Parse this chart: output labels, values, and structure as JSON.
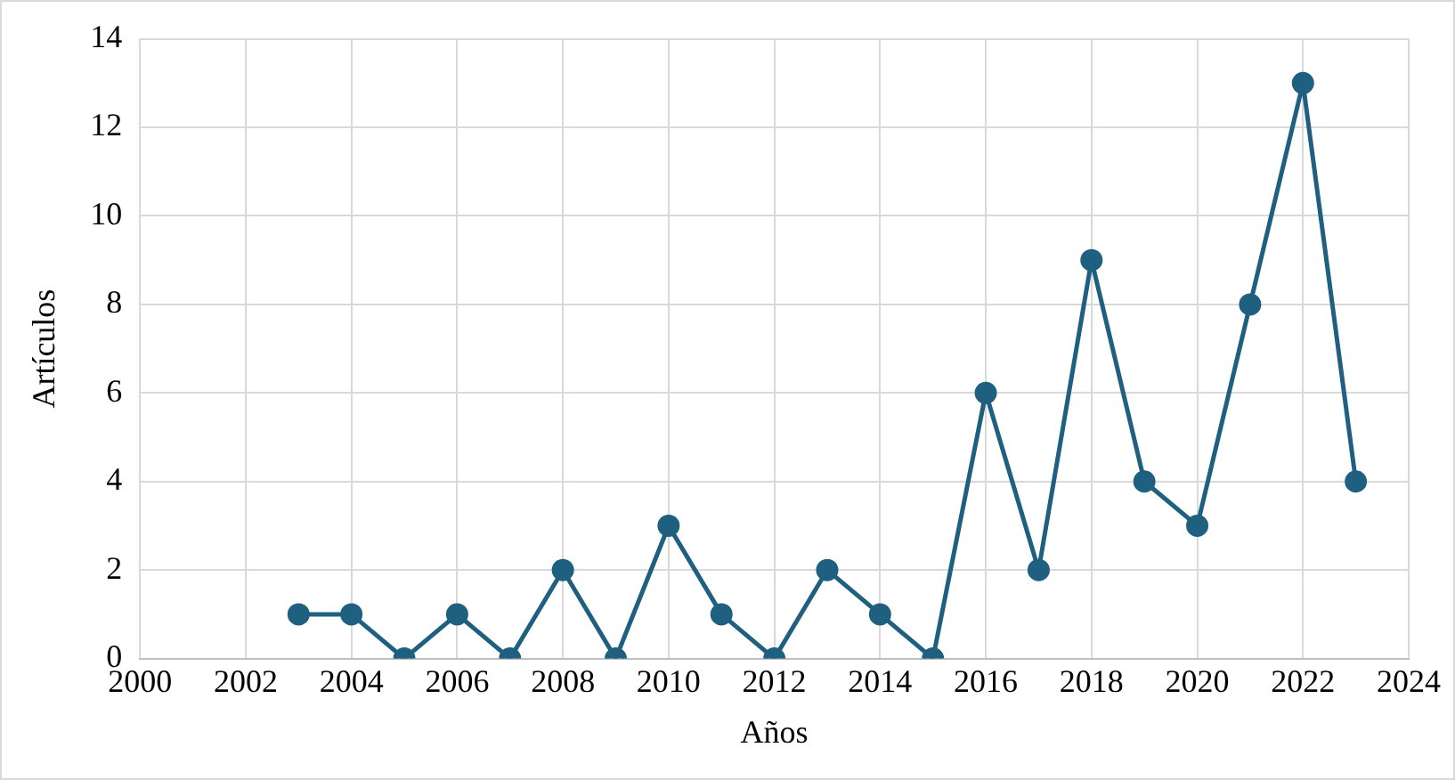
{
  "chart_data": {
    "type": "line",
    "xlabel": "Años",
    "ylabel": "Artículos",
    "x": [
      2003,
      2004,
      2005,
      2006,
      2007,
      2008,
      2009,
      2010,
      2011,
      2012,
      2013,
      2014,
      2015,
      2016,
      2017,
      2018,
      2019,
      2020,
      2021,
      2022,
      2023
    ],
    "series": [
      {
        "color": "#1f6080",
        "values": [
          1,
          1,
          0,
          1,
          0,
          2,
          0,
          3,
          1,
          0,
          2,
          1,
          0,
          6,
          2,
          9,
          4,
          3,
          8,
          13,
          4
        ]
      }
    ],
    "xlim": [
      2000,
      2024
    ],
    "xticks": [
      2000,
      2002,
      2004,
      2006,
      2008,
      2010,
      2012,
      2014,
      2016,
      2018,
      2020,
      2022,
      2024
    ],
    "ylim": [
      0,
      14
    ],
    "yticks": [
      0,
      2,
      4,
      6,
      8,
      10,
      12,
      14
    ],
    "grid": true,
    "legend": false,
    "marker": "circle",
    "line_style": "solid"
  }
}
